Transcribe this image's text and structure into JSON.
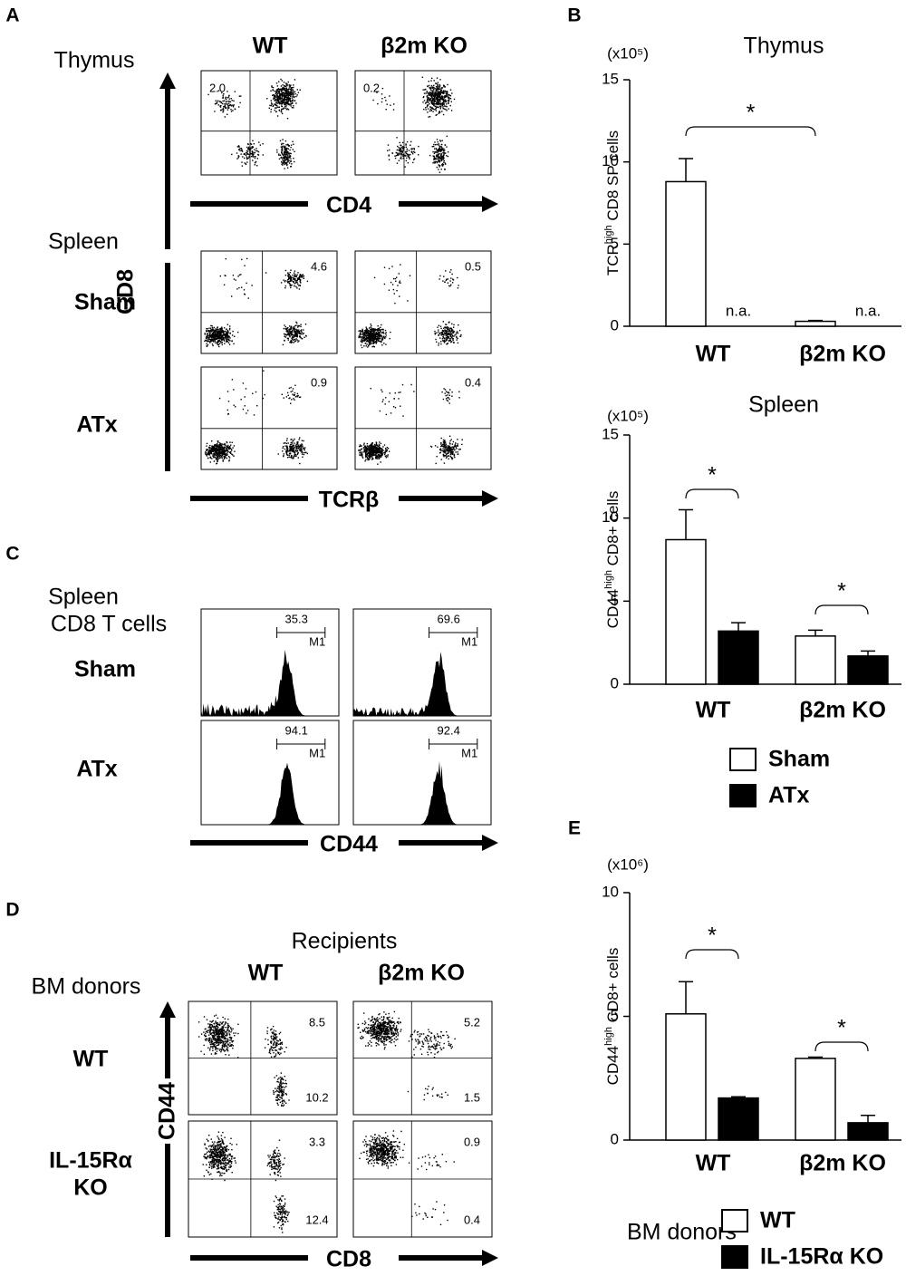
{
  "panels": {
    "A": {
      "label": "A",
      "columns": [
        "WT",
        "β2m KO"
      ],
      "thymus": {
        "label": "Thymus",
        "values": [
          "2.0",
          "0.2"
        ],
        "x_axis": "CD4"
      },
      "spleen": {
        "label": "Spleen",
        "y_axis": "CD8",
        "x_axis": "TCRβ",
        "rows": [
          {
            "label": "Sham",
            "values": [
              "4.6",
              "0.5"
            ]
          },
          {
            "label": "ATx",
            "values": [
              "0.9",
              "0.4"
            ]
          }
        ]
      }
    },
    "C": {
      "label": "C",
      "title": [
        "Spleen",
        "CD8 T cells"
      ],
      "gate": "M1",
      "x_axis": "CD44",
      "rows": [
        {
          "label": "Sham",
          "values": [
            "35.3",
            "69.6"
          ]
        },
        {
          "label": "ATx",
          "values": [
            "94.1",
            "92.4"
          ]
        }
      ]
    },
    "D": {
      "label": "D",
      "title": "Recipients",
      "columns": [
        "WT",
        "β2m KO"
      ],
      "row_title": "BM donors",
      "y_axis": "CD44",
      "x_axis": "CD8",
      "rows": [
        {
          "label": [
            "WT"
          ],
          "values": [
            [
              "8.5",
              "10.2"
            ],
            [
              "5.2",
              "1.5"
            ]
          ]
        },
        {
          "label": [
            "IL-15Rα",
            "KO"
          ],
          "values": [
            [
              "3.3",
              "12.4"
            ],
            [
              "0.9",
              "0.4"
            ]
          ]
        }
      ]
    },
    "B": {
      "label": "B"
    },
    "E": {
      "label": "E"
    }
  },
  "chart_data": [
    {
      "type": "bar",
      "title": "Thymus",
      "unit": "(x10⁵)",
      "y_label": [
        "TCR",
        "high",
        " CD8 SP cells"
      ],
      "categories": [
        "WT",
        "β2m KO"
      ],
      "ylim": [
        0,
        15
      ],
      "yticks": [
        0,
        5,
        10,
        15
      ],
      "series": [
        {
          "name": "Sham",
          "color": "#ffffff",
          "values": [
            8.8,
            0.3
          ],
          "errors": [
            1.4,
            0.05
          ]
        },
        {
          "name": "ATx",
          "color": "#000000",
          "values": [
            null,
            null
          ],
          "value_labels": [
            "n.a.",
            "n.a."
          ]
        }
      ],
      "annotations": [
        "*"
      ]
    },
    {
      "type": "bar",
      "title": "Spleen",
      "unit": "(x10⁵)",
      "y_label": [
        "CD44",
        "high",
        " CD8+ cells"
      ],
      "categories": [
        "WT",
        "β2m KO"
      ],
      "ylim": [
        0,
        15
      ],
      "yticks": [
        0,
        5,
        10,
        15
      ],
      "series": [
        {
          "name": "Sham",
          "color": "#ffffff",
          "values": [
            8.7,
            2.9
          ],
          "errors": [
            1.8,
            0.35
          ]
        },
        {
          "name": "ATx",
          "color": "#000000",
          "values": [
            3.2,
            1.7
          ],
          "errors": [
            0.5,
            0.3
          ]
        }
      ],
      "annotations": [
        "*",
        "*"
      ],
      "legend": "bottom"
    },
    {
      "type": "bar",
      "unit": "(x10⁶)",
      "y_label": [
        "CD44",
        "high",
        " CD8+ cells"
      ],
      "categories": [
        "WT",
        "β2m KO"
      ],
      "ylim": [
        0,
        10
      ],
      "yticks": [
        0,
        5,
        10
      ],
      "series": [
        {
          "name": "WT",
          "color": "#ffffff",
          "values": [
            5.1,
            3.3
          ],
          "errors": [
            1.3,
            0.05
          ]
        },
        {
          "name": "IL-15Rα KO",
          "color": "#000000",
          "values": [
            1.7,
            0.7
          ],
          "errors": [
            0.05,
            0.3
          ]
        }
      ],
      "annotations": [
        "*",
        "*"
      ],
      "legend": "bottom",
      "legend_title": "BM donors"
    }
  ]
}
